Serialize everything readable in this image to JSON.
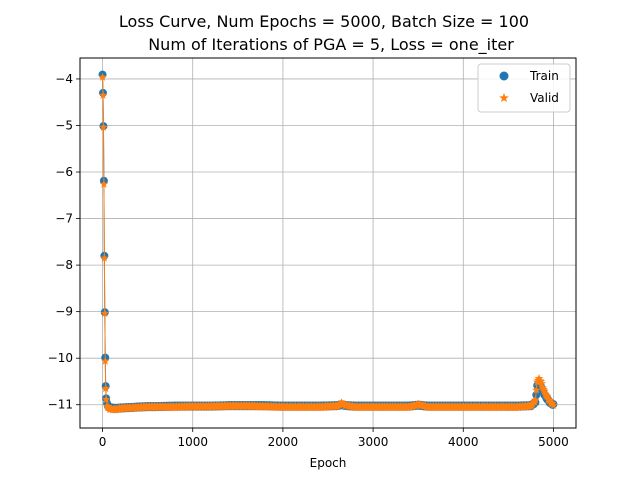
{
  "chart_data": {
    "type": "scatter",
    "title_line1": "Loss Curve, Num Epochs = 5000, Batch Size = 100",
    "title_line2": "Num of Iterations of PGA = 5, Loss = one_iter",
    "xlabel": "Epoch",
    "ylabel": "",
    "xlim": [
      -250,
      5250
    ],
    "ylim": [
      -11.5,
      -3.55
    ],
    "xticks": [
      0,
      1000,
      2000,
      3000,
      4000,
      5000
    ],
    "yticks": [
      -4,
      -5,
      -6,
      -7,
      -8,
      -9,
      -10,
      -11
    ],
    "grid": true,
    "legend_position": "top-right",
    "series": [
      {
        "name": "Train",
        "marker": "circle",
        "color": "#1f77b4",
        "x": [
          0,
          5,
          10,
          15,
          20,
          25,
          30,
          35,
          40,
          50,
          60,
          80,
          100,
          150,
          200,
          300,
          400,
          500,
          600,
          800,
          1000,
          1200,
          1400,
          1600,
          1800,
          2000,
          2200,
          2400,
          2600,
          2650,
          2700,
          2800,
          3000,
          3200,
          3400,
          3500,
          3550,
          3600,
          3800,
          4000,
          4200,
          4400,
          4600,
          4750,
          4800,
          4820,
          4840,
          4860,
          4880,
          4900,
          4920,
          4940,
          4960,
          4980,
          5000
        ],
        "y": [
          -3.92,
          -4.3,
          -5.0,
          -6.2,
          -7.8,
          -9.0,
          -10.0,
          -10.6,
          -10.85,
          -10.98,
          -11.03,
          -11.06,
          -11.07,
          -11.08,
          -11.07,
          -11.06,
          -11.05,
          -11.04,
          -11.04,
          -11.03,
          -11.03,
          -11.03,
          -11.02,
          -11.02,
          -11.02,
          -11.03,
          -11.03,
          -11.03,
          -11.02,
          -11.0,
          -11.02,
          -11.03,
          -11.03,
          -11.03,
          -11.03,
          -11.01,
          -11.02,
          -11.03,
          -11.03,
          -11.03,
          -11.03,
          -11.03,
          -11.03,
          -11.02,
          -10.95,
          -10.6,
          -10.55,
          -10.6,
          -10.7,
          -10.78,
          -10.85,
          -10.9,
          -10.95,
          -10.98,
          -11.0
        ]
      },
      {
        "name": "Valid",
        "marker": "star",
        "color": "#ff7f0e",
        "x": [
          0,
          5,
          10,
          15,
          20,
          25,
          30,
          35,
          40,
          50,
          60,
          80,
          100,
          150,
          200,
          300,
          400,
          500,
          600,
          800,
          1000,
          1200,
          1400,
          1600,
          1800,
          2000,
          2200,
          2400,
          2600,
          2650,
          2700,
          2800,
          3000,
          3200,
          3400,
          3500,
          3550,
          3600,
          3800,
          4000,
          4200,
          4400,
          4600,
          4750,
          4800,
          4820,
          4840,
          4860,
          4880,
          4900,
          4920,
          4940,
          4960,
          4980,
          5000
        ],
        "y": [
          -3.95,
          -4.35,
          -5.05,
          -6.25,
          -7.85,
          -9.05,
          -10.05,
          -10.65,
          -10.9,
          -11.02,
          -11.06,
          -11.09,
          -11.1,
          -11.1,
          -11.08,
          -11.07,
          -11.06,
          -11.05,
          -11.05,
          -11.05,
          -11.04,
          -11.04,
          -11.03,
          -11.03,
          -11.04,
          -11.05,
          -11.05,
          -11.05,
          -11.03,
          -10.97,
          -11.02,
          -11.05,
          -11.05,
          -11.05,
          -11.05,
          -11.0,
          -11.02,
          -11.05,
          -11.05,
          -11.05,
          -11.05,
          -11.05,
          -11.05,
          -11.03,
          -10.9,
          -10.5,
          -10.45,
          -10.5,
          -10.62,
          -10.72,
          -10.8,
          -10.87,
          -10.93,
          -10.97,
          -11.0
        ]
      }
    ]
  }
}
